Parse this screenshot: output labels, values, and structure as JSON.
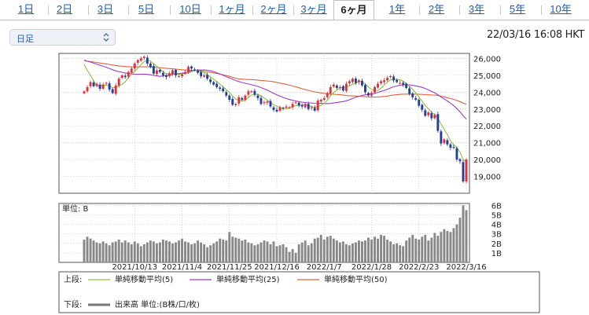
{
  "tabs": [
    {
      "label": "1日",
      "active": false
    },
    {
      "label": "2日",
      "active": false
    },
    {
      "label": "3日",
      "active": false
    },
    {
      "label": "5日",
      "active": false
    },
    {
      "label": "10日",
      "active": false
    },
    {
      "label": "1ヶ月",
      "active": false
    },
    {
      "label": "2ヶ月",
      "active": false
    },
    {
      "label": "3ヶ月",
      "active": false
    },
    {
      "label": "6ヶ月",
      "active": true
    },
    {
      "label": "1年",
      "active": false
    },
    {
      "label": "2年",
      "active": false
    },
    {
      "label": "3年",
      "active": false
    },
    {
      "label": "5年",
      "active": false
    },
    {
      "label": "10年",
      "active": false
    }
  ],
  "select": {
    "value": "日足",
    "icon": "updown-chevron-icon"
  },
  "timestamp": "22/03/16 16:08 HKT",
  "colors": {
    "up": "#e0303a",
    "down": "#1f3f9a",
    "ma5": "#8fbf3a",
    "ma25": "#9a3ec8",
    "ma50": "#e0603a",
    "volume": "#888888"
  },
  "chart_data": {
    "type": "candlestick",
    "price_axis": {
      "ticks": [
        "19,000",
        "20,000",
        "21,000",
        "22,000",
        "23,000",
        "24,000",
        "25,000",
        "26,000"
      ],
      "ylim": [
        18000,
        26300
      ]
    },
    "volume_axis": {
      "label": "単位: B",
      "ticks": [
        "1B",
        "2B",
        "3B",
        "4B",
        "5B",
        "6B"
      ],
      "ylim": [
        0,
        6.2
      ]
    },
    "x_tick_labels": [
      "2021/10/13",
      "2021/11/4",
      "2021/11/25",
      "2021/12/16",
      "2022/1/7",
      "2022/1/28",
      "2022/2/23",
      "2022/3/16"
    ],
    "x_tick_index": [
      16,
      31,
      46,
      61,
      76,
      91,
      106,
      121
    ],
    "closes": [
      24050,
      24300,
      24600,
      24350,
      24500,
      24200,
      24450,
      24550,
      24150,
      23950,
      24400,
      24800,
      25000,
      24900,
      25200,
      25400,
      25700,
      25900,
      26000,
      26100,
      25700,
      25500,
      25100,
      25300,
      25200,
      25000,
      24900,
      25100,
      25300,
      25000,
      24950,
      25050,
      25200,
      25500,
      25400,
      25300,
      25150,
      24950,
      25000,
      24800,
      24600,
      24450,
      24300,
      24200,
      24050,
      23800,
      23550,
      23250,
      23300,
      23700,
      23550,
      23800,
      24050,
      24050,
      23850,
      23650,
      23300,
      23400,
      23450,
      23150,
      22950,
      22850,
      23100,
      23050,
      23150,
      23100,
      23300,
      23400,
      23200,
      23150,
      23300,
      23000,
      23100,
      22900,
      23500,
      23550,
      23650,
      23950,
      24300,
      24450,
      24250,
      24300,
      24100,
      24500,
      24650,
      24800,
      24550,
      24700,
      24400,
      24000,
      23800,
      23950,
      24300,
      24500,
      24650,
      24700,
      24850,
      24950,
      24700,
      24600,
      24550,
      24450,
      24250,
      23900,
      23700,
      23550,
      23200,
      22950,
      22600,
      22800,
      22450,
      22650,
      21700,
      20950,
      21200,
      20900,
      20700,
      20700,
      20000,
      19900,
      18700,
      20000
    ],
    "volume": [
      2.4,
      2.7,
      2.5,
      2.3,
      2.1,
      2.0,
      2.2,
      2.0,
      1.8,
      2.1,
      2.2,
      2.4,
      2.1,
      2.3,
      2.1,
      1.9,
      2.2,
      2.0,
      1.7,
      1.9,
      2.1,
      2.3,
      2.2,
      2.0,
      2.1,
      2.4,
      2.3,
      2.2,
      2.0,
      2.1,
      2.3,
      2.5,
      2.2,
      2.1,
      1.9,
      2.0,
      2.3,
      2.1,
      1.9,
      1.6,
      1.8,
      2.0,
      2.2,
      2.5,
      2.4,
      2.3,
      3.2,
      2.7,
      2.6,
      2.5,
      2.3,
      2.4,
      2.1,
      2.0,
      1.8,
      1.9,
      2.1,
      2.3,
      2.2,
      1.9,
      2.2,
      1.7,
      1.8,
      1.9,
      1.6,
      1.1,
      1.4,
      1.0,
      1.9,
      2.1,
      2.3,
      1.8,
      2.0,
      2.5,
      2.6,
      2.9,
      2.4,
      2.7,
      2.8,
      2.5,
      2.3,
      2.1,
      2.2,
      1.9,
      1.8,
      2.0,
      2.1,
      2.3,
      2.2,
      2.3,
      2.6,
      2.4,
      2.7,
      2.5,
      2.9,
      2.8,
      2.4,
      2.2,
      1.9,
      2.0,
      1.8,
      1.7,
      2.3,
      2.6,
      2.9,
      2.5,
      2.4,
      2.7,
      2.9,
      2.3,
      2.6,
      3.1,
      2.8,
      3.2,
      3.5,
      3.3,
      3.2,
      3.6,
      4.0,
      4.7,
      6.0,
      5.5
    ]
  },
  "legend": {
    "upper_label": "上段:",
    "lower_label": "下段:",
    "items": [
      {
        "name": "単純移動平均(5)",
        "color": "#8fbf3a"
      },
      {
        "name": "単純移動平均(25)",
        "color": "#9a3ec8"
      },
      {
        "name": "単純移動平均(50)",
        "color": "#e0603a"
      }
    ],
    "volume_item": "出来高 単位:(B株/口/枚)"
  }
}
